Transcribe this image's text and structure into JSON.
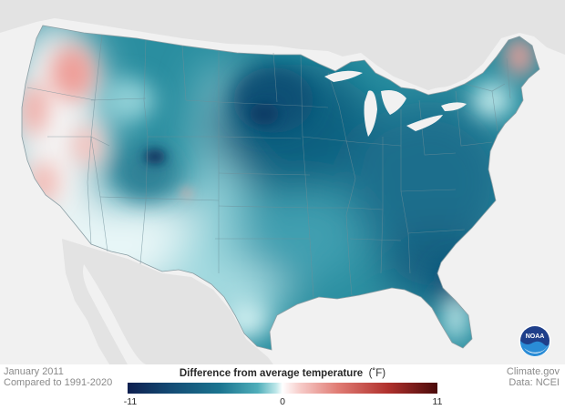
{
  "map": {
    "region": "Contiguous United States",
    "colors": {
      "ocean": "#f1f1f1",
      "land_outside": "#e3e3e3",
      "state_border": "#6f8f98",
      "cold_extreme": "#0e1f4f",
      "cold": "#1b7590",
      "neutral": "#ffffff",
      "warm": "#e07b73",
      "warm_extreme": "#4a0a0a"
    }
  },
  "footer": {
    "date": "January 2011",
    "baseline": "Compared to 1991-2020",
    "credit": "Climate.gov",
    "source": "Data: NCEI"
  },
  "legend": {
    "title": "Difference from average temperature",
    "unit": "(˚F)",
    "min_label": "-11",
    "mid_label": "0",
    "max_label": "11"
  },
  "logo": {
    "text": "NOAA",
    "icon": "noaa-logo-icon"
  }
}
